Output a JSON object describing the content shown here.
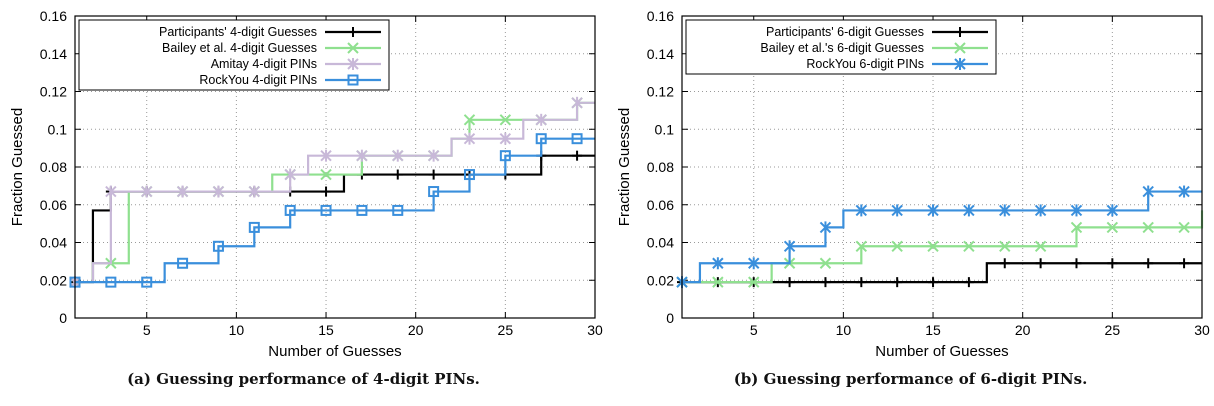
{
  "chart_data": [
    {
      "type": "line",
      "caption": "(a) Guessing performance of 4-digit PINs.",
      "xlabel": "Number of Guesses",
      "ylabel": "Fraction Guessed",
      "xlim": [
        1,
        30
      ],
      "ylim": [
        0,
        0.16
      ],
      "xticks": [
        5,
        10,
        15,
        20,
        25,
        30
      ],
      "yticks": [
        0,
        0.02,
        0.04,
        0.06,
        0.08,
        0.1,
        0.12,
        0.14,
        0.16
      ],
      "ytick_labels": [
        "0",
        "0.02",
        "0.04",
        "0.06",
        "0.08",
        "0.1",
        "0.12",
        "0.14",
        "0.16"
      ],
      "grid": true,
      "legend_position": "top-left",
      "series": [
        {
          "name": "Participants' 4-digit Guesses",
          "marker": "plus",
          "color": "#000000",
          "x": [
            1,
            2,
            3,
            4,
            5,
            6,
            7,
            8,
            9,
            10,
            11,
            12,
            13,
            14,
            15,
            16,
            17,
            18,
            19,
            20,
            21,
            22,
            23,
            24,
            25,
            26,
            27,
            28,
            29,
            30
          ],
          "y": [
            0.019,
            0.057,
            0.067,
            0.067,
            0.067,
            0.067,
            0.067,
            0.067,
            0.067,
            0.067,
            0.067,
            0.067,
            0.067,
            0.067,
            0.067,
            0.076,
            0.076,
            0.076,
            0.076,
            0.076,
            0.076,
            0.076,
            0.076,
            0.076,
            0.076,
            0.076,
            0.086,
            0.086,
            0.086,
            0.086
          ]
        },
        {
          "name": "Bailey et al. 4-digit Guesses",
          "marker": "x",
          "color": "#8fe08f",
          "x": [
            1,
            2,
            3,
            4,
            5,
            6,
            7,
            8,
            9,
            10,
            11,
            12,
            13,
            14,
            15,
            16,
            17,
            18,
            19,
            20,
            21,
            22,
            23,
            24,
            25,
            26,
            27,
            28,
            29,
            30
          ],
          "y": [
            0.019,
            0.029,
            0.029,
            0.067,
            0.067,
            0.067,
            0.067,
            0.067,
            0.067,
            0.067,
            0.067,
            0.076,
            0.076,
            0.076,
            0.076,
            0.076,
            0.086,
            0.086,
            0.086,
            0.086,
            0.086,
            0.095,
            0.105,
            0.105,
            0.105,
            0.105,
            0.105,
            0.105,
            0.114,
            0.114
          ]
        },
        {
          "name": "Amitay 4-digit PINs",
          "marker": "asterisk",
          "color": "#c8b8d8",
          "x": [
            1,
            2,
            3,
            4,
            5,
            6,
            7,
            8,
            9,
            10,
            11,
            12,
            13,
            14,
            15,
            16,
            17,
            18,
            19,
            20,
            21,
            22,
            23,
            24,
            25,
            26,
            27,
            28,
            29,
            30
          ],
          "y": [
            0.019,
            0.029,
            0.067,
            0.067,
            0.067,
            0.067,
            0.067,
            0.067,
            0.067,
            0.067,
            0.067,
            0.067,
            0.076,
            0.086,
            0.086,
            0.086,
            0.086,
            0.086,
            0.086,
            0.086,
            0.086,
            0.095,
            0.095,
            0.095,
            0.095,
            0.105,
            0.105,
            0.105,
            0.114,
            0.114
          ]
        },
        {
          "name": "RockYou 4-digit PINs",
          "marker": "square",
          "color": "#3a8fdc",
          "x": [
            1,
            2,
            3,
            4,
            5,
            6,
            7,
            8,
            9,
            10,
            11,
            12,
            13,
            14,
            15,
            16,
            17,
            18,
            19,
            20,
            21,
            22,
            23,
            24,
            25,
            26,
            27,
            28,
            29,
            30
          ],
          "y": [
            0.019,
            0.019,
            0.019,
            0.019,
            0.019,
            0.029,
            0.029,
            0.029,
            0.038,
            0.038,
            0.048,
            0.048,
            0.057,
            0.057,
            0.057,
            0.057,
            0.057,
            0.057,
            0.057,
            0.057,
            0.067,
            0.067,
            0.076,
            0.076,
            0.086,
            0.086,
            0.095,
            0.095,
            0.095,
            0.095
          ]
        }
      ]
    },
    {
      "type": "line",
      "caption": "(b) Guessing performance of 6-digit PINs.",
      "xlabel": "Number of Guesses",
      "ylabel": "Fraction Guessed",
      "xlim": [
        1,
        30
      ],
      "ylim": [
        0,
        0.16
      ],
      "xticks": [
        5,
        10,
        15,
        20,
        25,
        30
      ],
      "yticks": [
        0,
        0.02,
        0.04,
        0.06,
        0.08,
        0.1,
        0.12,
        0.14,
        0.16
      ],
      "ytick_labels": [
        "0",
        "0.02",
        "0.04",
        "0.06",
        "0.08",
        "0.1",
        "0.12",
        "0.14",
        "0.16"
      ],
      "grid": true,
      "legend_position": "top-left",
      "series": [
        {
          "name": "Participants' 6-digit Guesses",
          "marker": "plus",
          "color": "#000000",
          "x": [
            1,
            2,
            3,
            4,
            5,
            6,
            7,
            8,
            9,
            10,
            11,
            12,
            13,
            14,
            15,
            16,
            17,
            18,
            19,
            20,
            21,
            22,
            23,
            24,
            25,
            26,
            27,
            28,
            29,
            30
          ],
          "y": [
            0.019,
            0.019,
            0.019,
            0.019,
            0.019,
            0.019,
            0.019,
            0.019,
            0.019,
            0.019,
            0.019,
            0.019,
            0.019,
            0.019,
            0.019,
            0.019,
            0.019,
            0.029,
            0.029,
            0.029,
            0.029,
            0.029,
            0.029,
            0.029,
            0.029,
            0.029,
            0.029,
            0.029,
            0.029,
            0.029
          ]
        },
        {
          "name": "Bailey et al.'s 6-digit Guesses",
          "marker": "x",
          "color": "#8fe08f",
          "x": [
            1,
            2,
            3,
            4,
            5,
            6,
            7,
            8,
            9,
            10,
            11,
            12,
            13,
            14,
            15,
            16,
            17,
            18,
            19,
            20,
            21,
            22,
            23,
            24,
            25,
            26,
            27,
            28,
            29,
            30
          ],
          "y": [
            0.019,
            0.019,
            0.019,
            0.019,
            0.019,
            0.029,
            0.029,
            0.029,
            0.029,
            0.029,
            0.038,
            0.038,
            0.038,
            0.038,
            0.038,
            0.038,
            0.038,
            0.038,
            0.038,
            0.038,
            0.038,
            0.038,
            0.048,
            0.048,
            0.048,
            0.048,
            0.048,
            0.048,
            0.048,
            0.057
          ]
        },
        {
          "name": "RockYou 6-digit PINs",
          "marker": "asterisk",
          "color": "#3a8fdc",
          "x": [
            1,
            2,
            3,
            4,
            5,
            6,
            7,
            8,
            9,
            10,
            11,
            12,
            13,
            14,
            15,
            16,
            17,
            18,
            19,
            20,
            21,
            22,
            23,
            24,
            25,
            26,
            27,
            28,
            29,
            30
          ],
          "y": [
            0.019,
            0.029,
            0.029,
            0.029,
            0.029,
            0.029,
            0.038,
            0.038,
            0.048,
            0.057,
            0.057,
            0.057,
            0.057,
            0.057,
            0.057,
            0.057,
            0.057,
            0.057,
            0.057,
            0.057,
            0.057,
            0.057,
            0.057,
            0.057,
            0.057,
            0.057,
            0.067,
            0.067,
            0.067,
            0.067
          ]
        }
      ]
    }
  ]
}
